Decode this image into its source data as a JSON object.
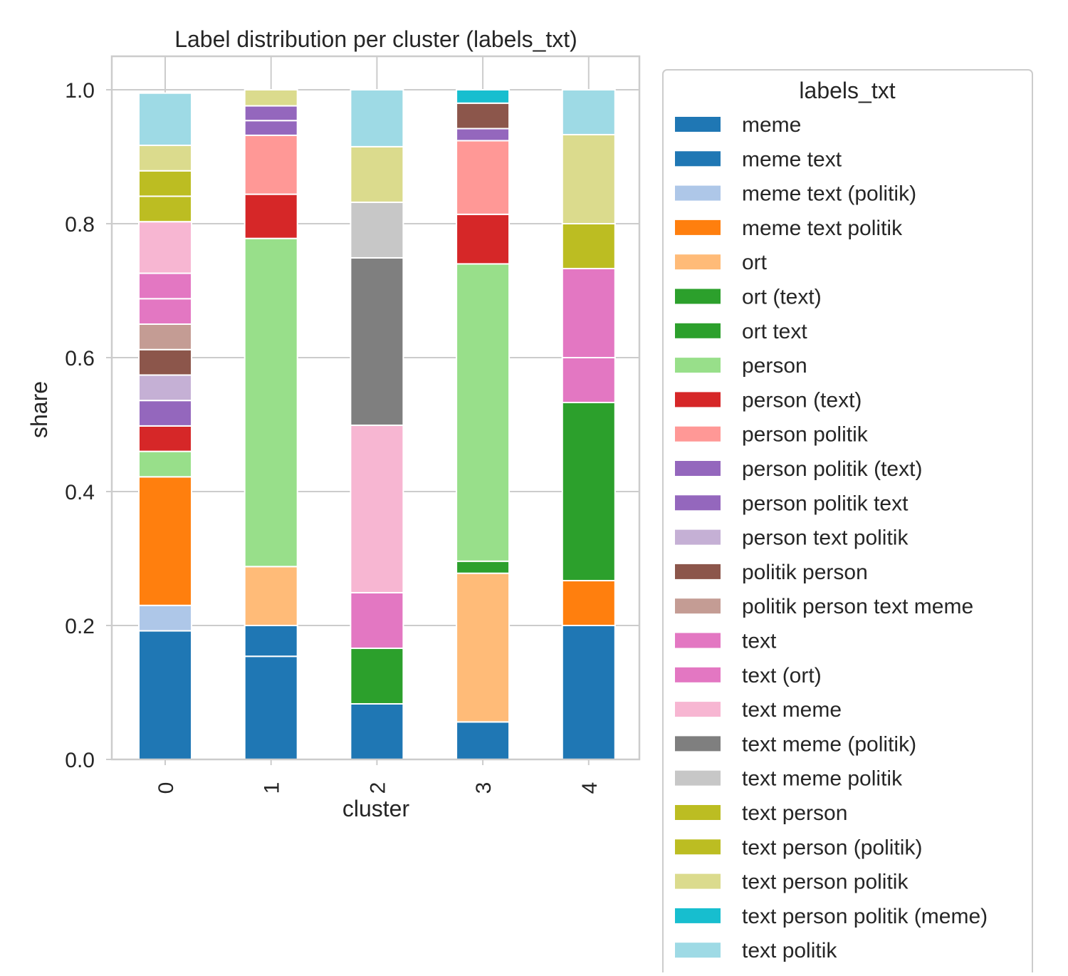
{
  "chart_data": {
    "type": "bar",
    "stacked": true,
    "title": "Label distribution per cluster (labels_txt)",
    "xlabel": "cluster",
    "ylabel": "share",
    "categories": [
      "0",
      "1",
      "2",
      "3",
      "4"
    ],
    "ylim": [
      0,
      1.05
    ],
    "yticks": [
      "0.0",
      "0.2",
      "0.4",
      "0.6",
      "0.8",
      "1.0"
    ],
    "grid": true,
    "legend_title": "labels_txt",
    "legend_position": "right, outside",
    "series": [
      {
        "name": "meme",
        "color": "#1f77b4",
        "values": [
          0.192,
          0.154,
          0.083,
          0.056,
          0.2
        ]
      },
      {
        "name": "meme text",
        "color": "#1f77b4",
        "values": [
          0.0,
          0.046,
          0.0,
          0.0,
          0.0
        ]
      },
      {
        "name": "meme text (politik)",
        "color": "#aec7e8",
        "values": [
          0.038,
          0.0,
          0.0,
          0.0,
          0.0
        ]
      },
      {
        "name": "meme text politik",
        "color": "#ff7f0e",
        "values": [
          0.192,
          0.0,
          0.0,
          0.0,
          0.067
        ]
      },
      {
        "name": "ort",
        "color": "#ffbb78",
        "values": [
          0.0,
          0.088,
          0.0,
          0.222,
          0.0
        ]
      },
      {
        "name": "ort (text)",
        "color": "#2ca02c",
        "values": [
          0.0,
          0.0,
          0.0,
          0.018,
          0.0
        ]
      },
      {
        "name": "ort text",
        "color": "#2ca02c",
        "values": [
          0.0,
          0.0,
          0.083,
          0.0,
          0.266
        ]
      },
      {
        "name": "person",
        "color": "#98df8a",
        "values": [
          0.038,
          0.49,
          0.0,
          0.444,
          0.0
        ]
      },
      {
        "name": "person (text)",
        "color": "#d62728",
        "values": [
          0.038,
          0.066,
          0.0,
          0.074,
          0.0
        ]
      },
      {
        "name": "person politik",
        "color": "#ff9896",
        "values": [
          0.0,
          0.088,
          0.0,
          0.11,
          0.0
        ]
      },
      {
        "name": "person politik (text)",
        "color": "#9467bd",
        "values": [
          0.0,
          0.022,
          0.0,
          0.018,
          0.0
        ]
      },
      {
        "name": "person politik text",
        "color": "#9467bd",
        "values": [
          0.038,
          0.022,
          0.0,
          0.0,
          0.0
        ]
      },
      {
        "name": "person text politik",
        "color": "#c5b0d5",
        "values": [
          0.038,
          0.0,
          0.0,
          0.0,
          0.0
        ]
      },
      {
        "name": "politik person",
        "color": "#8c564b",
        "values": [
          0.038,
          0.0,
          0.0,
          0.038,
          0.0
        ]
      },
      {
        "name": "politik person text meme",
        "color": "#c49c94",
        "values": [
          0.038,
          0.0,
          0.0,
          0.0,
          0.0
        ]
      },
      {
        "name": "text",
        "color": "#e377c2",
        "values": [
          0.038,
          0.0,
          0.083,
          0.0,
          0.067
        ]
      },
      {
        "name": "text (ort)",
        "color": "#e377c2",
        "values": [
          0.038,
          0.0,
          0.0,
          0.0,
          0.133
        ]
      },
      {
        "name": "text meme",
        "color": "#f7b6d2",
        "values": [
          0.077,
          0.0,
          0.25,
          0.0,
          0.0
        ]
      },
      {
        "name": "text meme (politik)",
        "color": "#7f7f7f",
        "values": [
          0.0,
          0.0,
          0.25,
          0.0,
          0.0
        ]
      },
      {
        "name": "text meme politik",
        "color": "#c7c7c7",
        "values": [
          0.0,
          0.0,
          0.083,
          0.0,
          0.0
        ]
      },
      {
        "name": "text person",
        "color": "#bcbd22",
        "values": [
          0.038,
          0.0,
          0.0,
          0.0,
          0.067
        ]
      },
      {
        "name": "text person (politik)",
        "color": "#bcbd22",
        "values": [
          0.038,
          0.0,
          0.0,
          0.0,
          0.0
        ]
      },
      {
        "name": "text person politik",
        "color": "#dbdb8d",
        "values": [
          0.038,
          0.024,
          0.083,
          0.0,
          0.133
        ]
      },
      {
        "name": "text person politik (meme)",
        "color": "#17becf",
        "values": [
          0.0,
          0.0,
          0.0,
          0.02,
          0.0
        ]
      },
      {
        "name": "text politik",
        "color": "#9edae5",
        "values": [
          0.078,
          0.0,
          0.085,
          0.0,
          0.067
        ]
      }
    ]
  }
}
